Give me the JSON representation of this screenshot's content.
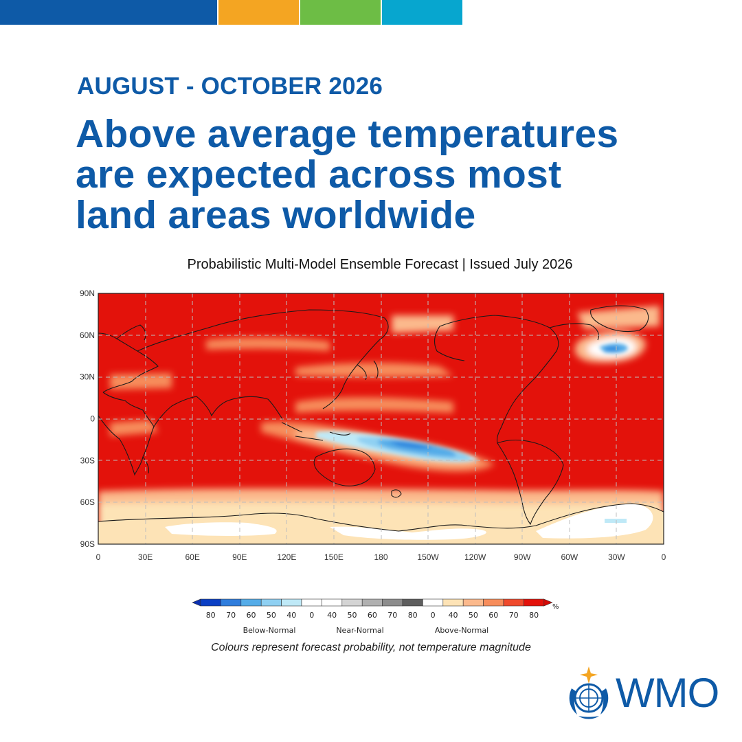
{
  "header": {
    "period": "AUGUST - OCTOBER 2026",
    "headline_lines": [
      "Above average temperatures",
      "are expected across most",
      "land areas worldwide"
    ],
    "subtitle": "Probabilistic Multi-Model Ensemble Forecast | Issued July 2026"
  },
  "brand_colors": [
    "#0e5aa7",
    "#f4a522",
    "#6dbd45",
    "#07a6cf"
  ],
  "map": {
    "lat_labels": [
      "90N",
      "60N",
      "30N",
      "0",
      "30S",
      "60S",
      "90S"
    ],
    "lon_labels": [
      "0",
      "30E",
      "60E",
      "90E",
      "120E",
      "150E",
      "180",
      "150W",
      "120W",
      "90W",
      "60W",
      "30W",
      "0"
    ],
    "colors": {
      "above_80": "#e3120b",
      "above_70": "#ef4a2c",
      "above_60": "#f78d5b",
      "above_50": "#fbb98c",
      "above_40": "#fde3b6",
      "white": "#ffffff",
      "below_40": "#bfe9f7",
      "below_50": "#8fd0f2",
      "below_60": "#55ace8",
      "below_70": "#2f86de",
      "below_80": "#0b4fc9",
      "near": "#d7d7d7"
    }
  },
  "legend": {
    "unit": "%",
    "tick_labels": [
      "80",
      "70",
      "60",
      "50",
      "40",
      "0",
      "40",
      "50",
      "60",
      "70",
      "80",
      "0",
      "40",
      "50",
      "60",
      "70",
      "80"
    ],
    "group_labels": [
      "Below-Normal",
      "Near-Normal",
      "Above-Normal"
    ],
    "colors": [
      "#0b3fc4",
      "#2f7ddc",
      "#55ace8",
      "#8fd0f2",
      "#bfe9f7",
      "#ffffff",
      "#ffffff",
      "#d4d4d4",
      "#b0b0b0",
      "#8c8c8c",
      "#5e5e5e",
      "#ffffff",
      "#fde3b6",
      "#fbb98c",
      "#f78d5b",
      "#ef4a2c",
      "#e3120b"
    ]
  },
  "note": "Colours represent forecast probability, not temperature magnitude",
  "logo": {
    "text": "WMO",
    "icon": "un-emblem-icon"
  }
}
